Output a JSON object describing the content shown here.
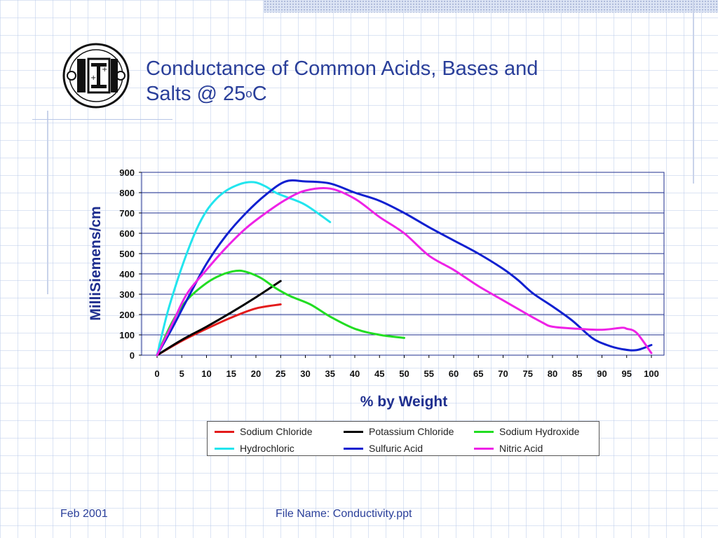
{
  "slide": {
    "title_main": "Conductance of Common Acids, Bases and",
    "title_line2": "Salts @ 25",
    "title_sup": "o",
    "title_end": "C",
    "footer_date": "Feb 2001",
    "footer_file": "File Name: Conductivity.ppt",
    "logo_text": "ISI"
  },
  "colors": {
    "title": "#2a3f9a",
    "axis_label": "#1f2f8f",
    "plot_border": "#1f2f8f",
    "gridline": "#1f2f8f"
  },
  "chart_data": {
    "type": "line",
    "title": "",
    "xlabel": "% by Weight",
    "ylabel": "MilliSiemens/cm",
    "xlim": [
      0,
      100
    ],
    "ylim": [
      0,
      900
    ],
    "xticks": [
      "0",
      "5",
      "10",
      "15",
      "20",
      "25",
      "30",
      "35",
      "40",
      "45",
      "50",
      "55",
      "60",
      "65",
      "70",
      "75",
      "80",
      "85",
      "90",
      "95",
      "100"
    ],
    "yticks": [
      "0",
      "100",
      "200",
      "300",
      "400",
      "500",
      "600",
      "700",
      "800",
      "900"
    ],
    "grid": "horizontal",
    "legend_position": "bottom",
    "series": [
      {
        "name": "Sodium Chloride",
        "color": "#e31b1b",
        "x": [
          0,
          5,
          10,
          15,
          20,
          25
        ],
        "y": [
          0,
          70,
          130,
          185,
          230,
          250
        ]
      },
      {
        "name": "Potassium Chloride",
        "color": "#000000",
        "x": [
          0,
          5,
          10,
          15,
          20,
          25
        ],
        "y": [
          0,
          75,
          140,
          210,
          285,
          365
        ]
      },
      {
        "name": "Sodium Hydroxide",
        "color": "#22dd22",
        "x": [
          0,
          3,
          6,
          10,
          13,
          16,
          18,
          21,
          24,
          27,
          31,
          35,
          40,
          45,
          50
        ],
        "y": [
          0,
          160,
          270,
          355,
          395,
          415,
          410,
          380,
          330,
          290,
          250,
          190,
          130,
          100,
          85
        ]
      },
      {
        "name": "Hydrochloric",
        "color": "#22e5ee",
        "x": [
          0,
          2,
          4,
          6,
          8,
          10,
          12,
          14,
          16,
          18,
          20,
          22,
          24,
          26,
          30,
          35
        ],
        "y": [
          0,
          200,
          360,
          500,
          620,
          710,
          770,
          810,
          835,
          850,
          850,
          830,
          800,
          780,
          740,
          655
        ]
      },
      {
        "name": "Sulfuric Acid",
        "color": "#1020d0",
        "x": [
          0,
          3,
          6,
          10,
          14,
          18,
          22,
          26,
          30,
          35,
          40,
          45,
          50,
          55,
          60,
          65,
          70,
          73,
          76,
          80,
          84,
          88,
          91,
          94,
          97,
          100
        ],
        "y": [
          0,
          130,
          270,
          450,
          590,
          700,
          790,
          855,
          855,
          845,
          800,
          760,
          700,
          630,
          565,
          500,
          425,
          370,
          305,
          240,
          170,
          85,
          50,
          30,
          25,
          50
        ]
      },
      {
        "name": "Nitric Acid",
        "color": "#ee22e6",
        "x": [
          0,
          3,
          6,
          10,
          14,
          18,
          22,
          26,
          30,
          35,
          40,
          45,
          50,
          55,
          60,
          65,
          70,
          75,
          78,
          80,
          85,
          90,
          94,
          95,
          97,
          100
        ],
        "y": [
          0,
          150,
          300,
          420,
          530,
          625,
          700,
          765,
          810,
          820,
          770,
          680,
          600,
          490,
          420,
          340,
          270,
          200,
          160,
          140,
          130,
          125,
          135,
          130,
          110,
          10
        ]
      }
    ]
  }
}
